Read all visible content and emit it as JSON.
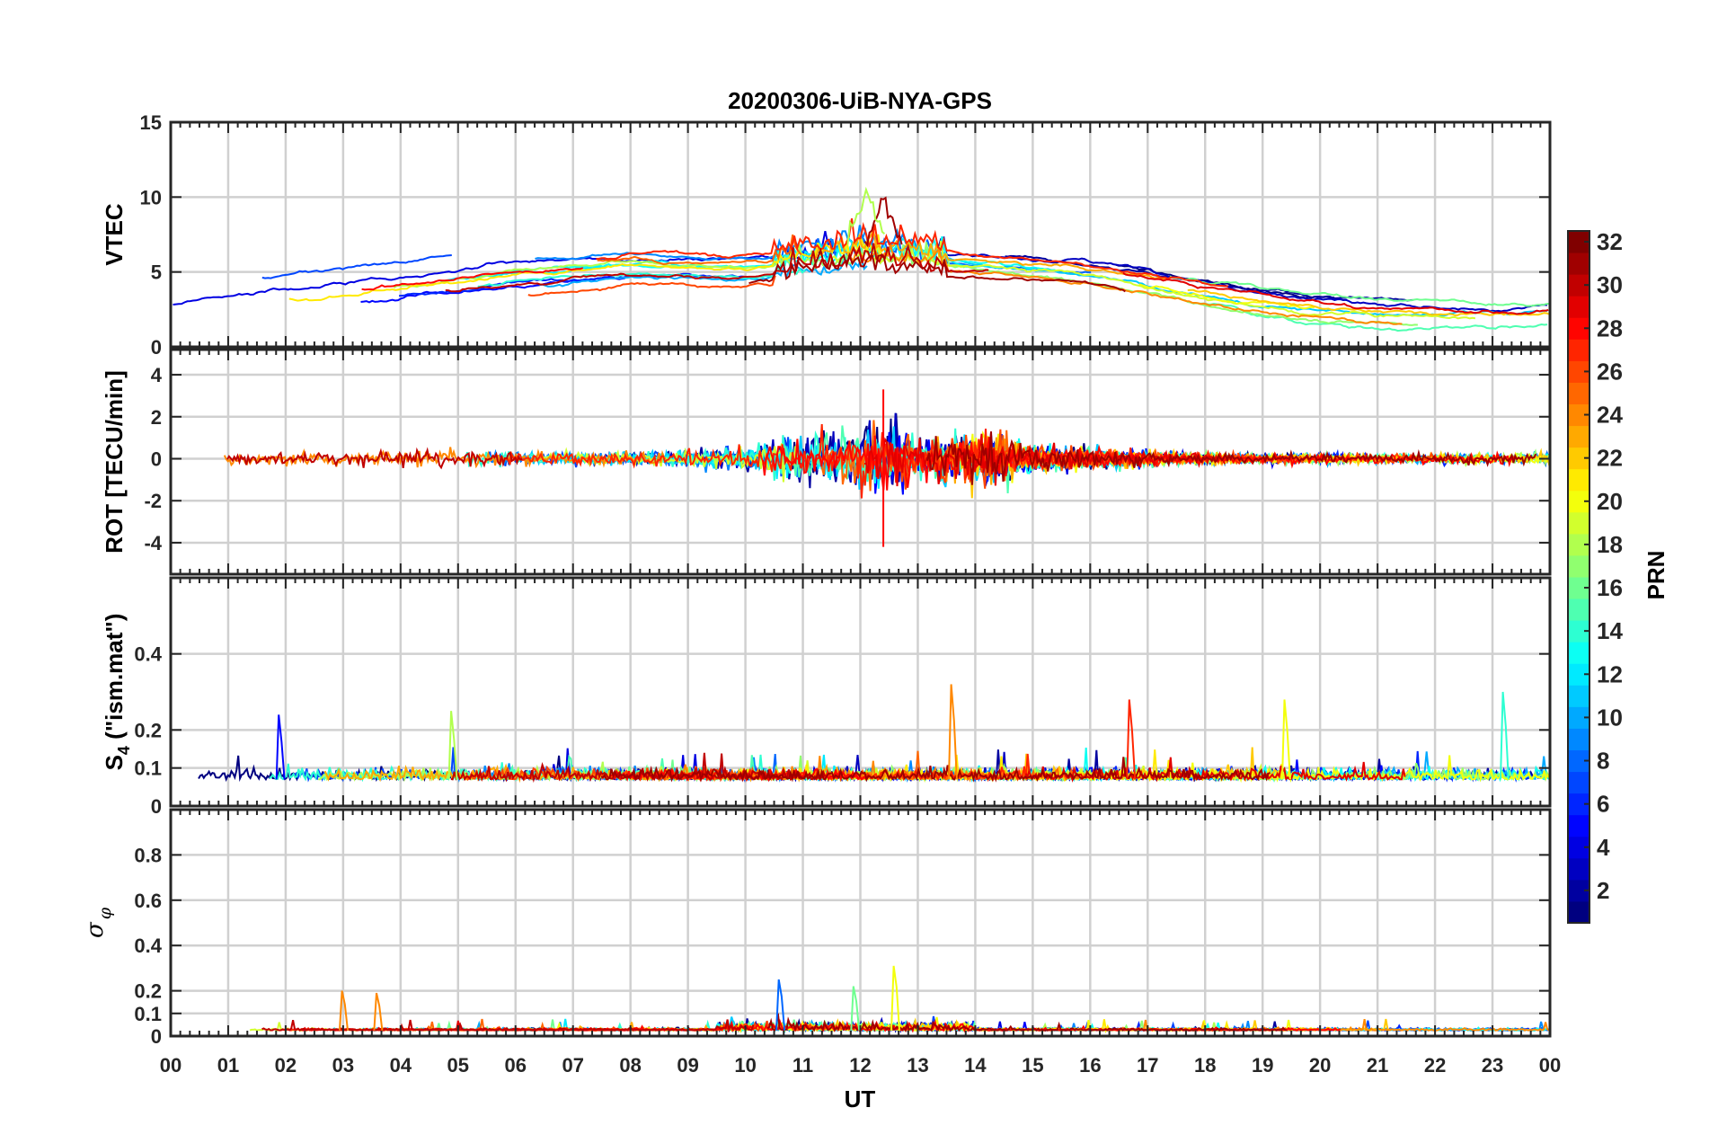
{
  "chart_data": {
    "type": "line",
    "title": "20200306-UiB-NYA-GPS",
    "xlabel": "UT",
    "x_ticks": [
      "00",
      "01",
      "02",
      "03",
      "04",
      "05",
      "06",
      "07",
      "08",
      "09",
      "10",
      "11",
      "12",
      "13",
      "14",
      "15",
      "16",
      "17",
      "18",
      "19",
      "20",
      "21",
      "22",
      "23",
      "00"
    ],
    "x_range_hours": [
      0,
      24
    ],
    "panels": [
      {
        "id": "vtec",
        "ylabel": "VTEC",
        "ylim": [
          0,
          15
        ],
        "yticks": [
          0,
          5,
          10,
          15
        ],
        "ytick_labels": [
          "0",
          "5",
          "10",
          "15"
        ],
        "grid": true,
        "envelope": {
          "x": [
            0,
            1,
            2,
            3,
            4,
            5,
            6,
            7,
            8,
            9,
            10,
            11,
            12,
            13,
            14,
            15,
            16,
            17,
            18,
            19,
            20,
            21,
            22,
            23,
            24
          ],
          "y": [
            2.3,
            2.9,
            3.4,
            3.8,
            4.2,
            4.6,
            5.1,
            5.4,
            5.6,
            5.5,
            5.4,
            5.6,
            6.2,
            6.0,
            5.6,
            5.3,
            4.9,
            4.3,
            3.6,
            3.0,
            2.6,
            2.3,
            2.2,
            2.1,
            2.2
          ]
        },
        "spread": 1.6,
        "peak_events": [
          {
            "x": 12.4,
            "y": 9.8,
            "prn": 31
          },
          {
            "x": 12.1,
            "y": 10.2,
            "prn": 18
          }
        ]
      },
      {
        "id": "rot",
        "ylabel": "ROT [TECU/min]",
        "ylim": [
          -5.5,
          5.2
        ],
        "yticks": [
          -4,
          -2,
          0,
          2,
          4
        ],
        "ytick_labels": [
          "-4",
          "-2",
          "0",
          "2",
          "4"
        ],
        "grid": true,
        "activity": {
          "x": [
            0,
            2,
            4,
            5,
            6,
            8,
            10,
            10.5,
            11,
            11.5,
            12,
            12.5,
            13,
            13.5,
            14,
            14.5,
            15,
            16,
            17,
            18,
            20,
            22,
            24
          ],
          "amplitude": [
            0.5,
            0.5,
            0.7,
            0.8,
            0.6,
            0.5,
            0.9,
            1.4,
            1.8,
            2.2,
            2.8,
            3.2,
            1.6,
            1.8,
            2.2,
            2.0,
            1.2,
            0.8,
            0.6,
            0.4,
            0.4,
            0.4,
            0.5
          ]
        },
        "extremes": {
          "max": 3.3,
          "min": -4.2
        }
      },
      {
        "id": "s4",
        "ylabel": "S4 (\"ism.mat\")",
        "ylabel_main": "S",
        "ylabel_sub": "4",
        "ylabel_rest": " (\"ism.mat\")",
        "ylim": [
          0,
          0.6
        ],
        "yticks": [
          0,
          0.1,
          0.2,
          0.4
        ],
        "ytick_labels": [
          "0",
          "0.1",
          "0.2",
          "0.4"
        ],
        "grid": true,
        "baseline": 0.07,
        "spikes": [
          {
            "x": 13.6,
            "y": 0.32,
            "prn": 24
          },
          {
            "x": 23.2,
            "y": 0.3,
            "prn": 14
          },
          {
            "x": 16.7,
            "y": 0.28,
            "prn": 27
          },
          {
            "x": 19.4,
            "y": 0.28,
            "prn": 20
          },
          {
            "x": 1.9,
            "y": 0.24,
            "prn": 5
          },
          {
            "x": 4.9,
            "y": 0.25,
            "prn": 18
          }
        ]
      },
      {
        "id": "sigma_phi",
        "ylabel": "σφ",
        "ylabel_main": "σ",
        "ylabel_sub": "φ",
        "ylim": [
          0,
          1.0
        ],
        "yticks": [
          0,
          0.1,
          0.2,
          0.4,
          0.6,
          0.8
        ],
        "ytick_labels": [
          "0",
          "0.1",
          "0.2",
          "0.4",
          "0.6",
          "0.8"
        ],
        "grid": true,
        "baseline": 0.025,
        "spikes": [
          {
            "x": 3.0,
            "y": 0.2,
            "prn": 24
          },
          {
            "x": 3.6,
            "y": 0.19,
            "prn": 24
          },
          {
            "x": 10.6,
            "y": 0.25,
            "prn": 8
          },
          {
            "x": 12.6,
            "y": 0.31,
            "prn": 20
          },
          {
            "x": 11.9,
            "y": 0.22,
            "prn": 16
          }
        ]
      }
    ],
    "colorbar": {
      "label": "PRN",
      "range": [
        1,
        32
      ],
      "ticks": [
        2,
        4,
        6,
        8,
        10,
        12,
        14,
        16,
        18,
        20,
        22,
        24,
        26,
        28,
        30,
        32
      ],
      "colormap": "jet"
    },
    "series_count": 31
  }
}
